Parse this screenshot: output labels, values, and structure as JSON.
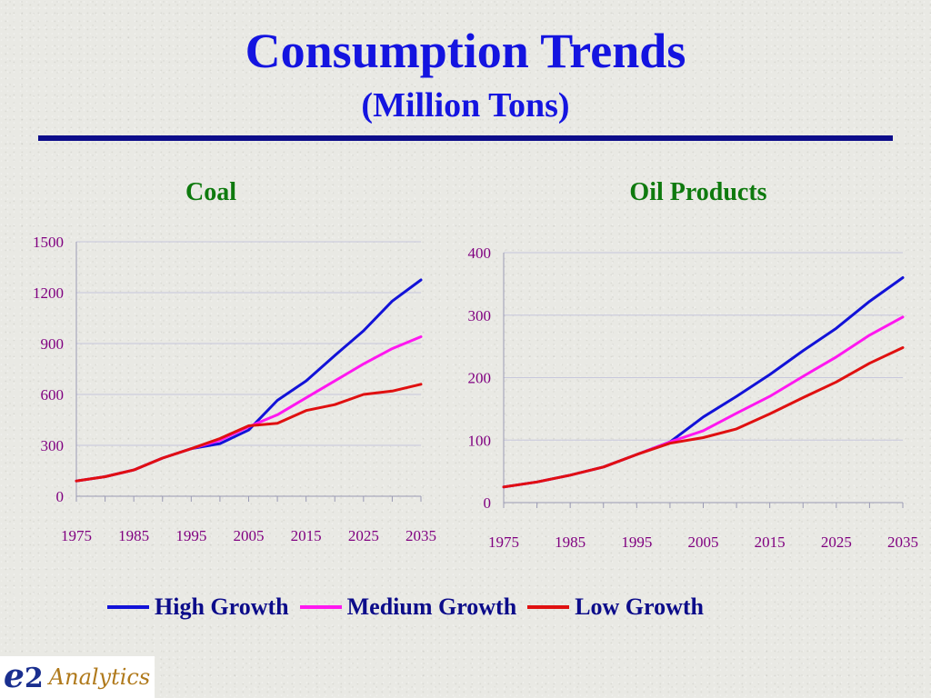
{
  "header": {
    "title": "Consumption Trends",
    "subtitle": "(Million Tons)"
  },
  "legend": {
    "items": [
      {
        "label": "High Growth",
        "color": "#1212d8"
      },
      {
        "label": "Medium Growth",
        "color": "#ff17f0"
      },
      {
        "label": "Low Growth",
        "color": "#e01010"
      }
    ]
  },
  "logo": {
    "mark": "e",
    "mark_number": "2",
    "text": "Analytics"
  },
  "colors": {
    "title": "#1414e0",
    "chart_title": "#0e7a0e",
    "tick_label": "#800080",
    "legend_text": "#0c0c8a",
    "rule": "#0c0c8a",
    "grid": "#c8c8dc"
  },
  "chart_data": [
    {
      "type": "line",
      "title": "Coal",
      "xlabel": "",
      "ylabel": "",
      "x": [
        1975,
        1980,
        1985,
        1990,
        1995,
        2000,
        2005,
        2010,
        2015,
        2020,
        2025,
        2030,
        2035
      ],
      "x_ticks": [
        1975,
        1985,
        1995,
        2005,
        2015,
        2025,
        2035
      ],
      "ylim": [
        0,
        1500
      ],
      "y_ticks": [
        0,
        300,
        600,
        900,
        1200,
        1500
      ],
      "grid": true,
      "series": [
        {
          "name": "High Growth",
          "values": [
            90,
            115,
            155,
            225,
            280,
            310,
            390,
            565,
            680,
            830,
            975,
            1150,
            1275
          ]
        },
        {
          "name": "Medium Growth",
          "values": [
            90,
            115,
            155,
            225,
            280,
            330,
            410,
            480,
            580,
            680,
            780,
            870,
            940
          ]
        },
        {
          "name": "Low Growth",
          "values": [
            90,
            115,
            155,
            225,
            280,
            340,
            415,
            430,
            505,
            540,
            600,
            620,
            660
          ]
        }
      ]
    },
    {
      "type": "line",
      "title": "Oil Products",
      "xlabel": "",
      "ylabel": "",
      "x": [
        1975,
        1980,
        1985,
        1990,
        1995,
        2000,
        2005,
        2010,
        2015,
        2020,
        2025,
        2030,
        2035
      ],
      "x_ticks": [
        1975,
        1985,
        1995,
        2005,
        2015,
        2025,
        2035
      ],
      "ylim": [
        0,
        400
      ],
      "y_ticks": [
        0,
        100,
        200,
        300,
        400
      ],
      "grid": true,
      "series": [
        {
          "name": "High Growth",
          "values": [
            25,
            33,
            44,
            57,
            77,
            97,
            137,
            170,
            205,
            243,
            279,
            322,
            360
          ]
        },
        {
          "name": "Medium Growth",
          "values": [
            25,
            33,
            44,
            57,
            77,
            97,
            115,
            143,
            170,
            202,
            233,
            268,
            297
          ]
        },
        {
          "name": "Low Growth",
          "values": [
            25,
            33,
            44,
            57,
            77,
            95,
            104,
            118,
            142,
            168,
            193,
            223,
            248
          ]
        }
      ]
    }
  ]
}
